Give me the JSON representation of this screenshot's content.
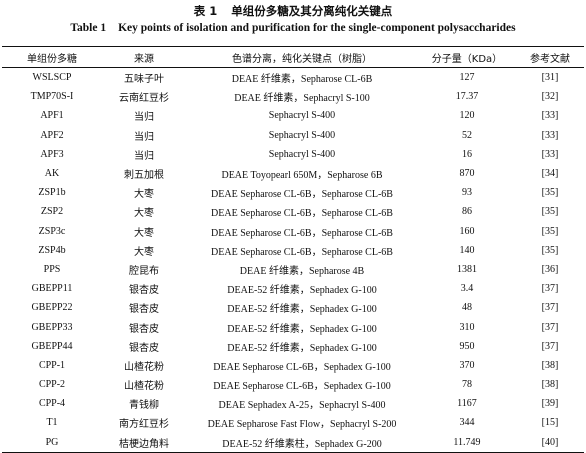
{
  "caption_cn": {
    "num": "表 1",
    "title": "单组份多糖及其分离纯化关键点"
  },
  "caption_en": {
    "num": "Table 1",
    "title": "Key points of isolation and purification for the single-component polysaccharides"
  },
  "headers": [
    "单组份多糖",
    "来源",
    "色谱分离，纯化关键点（树脂）",
    "分子量（KDa）",
    "参考文献"
  ],
  "rows": [
    [
      "WSLSCP",
      "五味子叶",
      "DEAE 纤维素，Sepharose CL-6B",
      "127",
      "[31]"
    ],
    [
      "TMP70S-I",
      "云南红豆杉",
      "DEAE 纤维素，Sephacryl S-100",
      "17.37",
      "[32]"
    ],
    [
      "APF1",
      "当归",
      "Sephacryl S-400",
      "120",
      "[33]"
    ],
    [
      "APF2",
      "当归",
      "Sephacryl S-400",
      "52",
      "[33]"
    ],
    [
      "APF3",
      "当归",
      "Sephacryl S-400",
      "16",
      "[33]"
    ],
    [
      "AK",
      "刺五加根",
      "DEAE Toyopearl 650M，Sepharose 6B",
      "870",
      "[34]"
    ],
    [
      "ZSP1b",
      "大枣",
      "DEAE Sepharose CL-6B，Sepharose CL-6B",
      "93",
      "[35]"
    ],
    [
      "ZSP2",
      "大枣",
      "DEAE Sepharose CL-6B，Sepharose CL-6B",
      "86",
      "[35]"
    ],
    [
      "ZSP3c",
      "大枣",
      "DEAE Sepharose CL-6B，Sepharose CL-6B",
      "160",
      "[35]"
    ],
    [
      "ZSP4b",
      "大枣",
      "DEAE Sepharose CL-6B，Sepharose CL-6B",
      "140",
      "[35]"
    ],
    [
      "PPS",
      "腔昆布",
      "DEAE 纤维素，Sepharose 4B",
      "1381",
      "[36]"
    ],
    [
      "GBEPP11",
      "银杏皮",
      "DEAE-52 纤维素，Sephadex G-100",
      "3.4",
      "[37]"
    ],
    [
      "GBEPP22",
      "银杏皮",
      "DEAE-52 纤维素，Sephadex G-100",
      "48",
      "[37]"
    ],
    [
      "GBEPP33",
      "银杏皮",
      "DEAE-52 纤维素，Sephadex G-100",
      "310",
      "[37]"
    ],
    [
      "GBEPP44",
      "银杏皮",
      "DEAE-52 纤维素，Sephadex G-100",
      "950",
      "[37]"
    ],
    [
      "CPP-1",
      "山楂花粉",
      "DEAE Sepharose CL-6B，Sephadex G-100",
      "370",
      "[38]"
    ],
    [
      "CPP-2",
      "山楂花粉",
      "DEAE Sepharose CL-6B，Sephadex G-100",
      "78",
      "[38]"
    ],
    [
      "CPP-4",
      "青钱柳",
      "DEAE Sephadex A-25，Sephacryl S-400",
      "1167",
      "[39]"
    ],
    [
      "T1",
      "南方红豆杉",
      "DEAE Sepharose Fast Flow，Sephacryl S-200",
      "344",
      "[15]"
    ],
    [
      "PG",
      "桔梗边角料",
      "DEAE-52 纤维素柱，Sephadex G-200",
      "11.749",
      "[40]"
    ]
  ]
}
